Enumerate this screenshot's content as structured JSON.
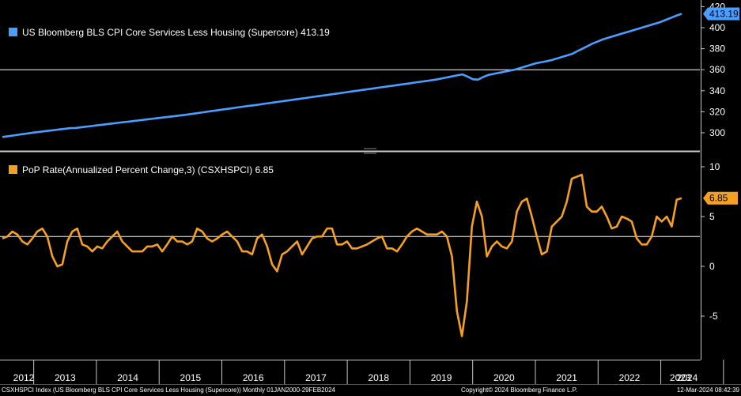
{
  "chart_data": [
    {
      "type": "line",
      "legend": "US Bloomberg BLS CPI Core Services Less Housing (Supercore) 413.19",
      "last_value_tag": "413.19",
      "color": "#4a9eff",
      "ylim": [
        290,
        420
      ],
      "yticks": [
        300,
        320,
        340,
        360,
        380,
        400,
        420
      ],
      "ytick_labels": [
        "300",
        "320",
        "340",
        "360",
        "380",
        "400",
        "420"
      ],
      "series": [
        {
          "values": [
            296.0,
            296.7,
            297.4,
            298.1,
            298.8,
            299.5,
            300.2,
            300.8,
            301.4,
            302.0,
            302.6,
            303.2,
            303.8,
            304.4,
            304.6,
            305.2,
            305.8,
            306.4,
            307.0,
            307.6,
            308.2,
            308.8,
            309.4,
            310.0,
            310.5,
            311.1,
            311.7,
            312.3,
            312.9,
            313.5,
            314.1,
            314.7,
            315.3,
            315.9,
            316.5,
            317.1,
            317.8,
            318.5,
            319.2,
            319.9,
            320.6,
            321.3,
            322.0,
            322.7,
            323.4,
            324.1,
            324.8,
            325.5,
            326.1,
            326.8,
            327.5,
            328.2,
            328.9,
            329.6,
            330.3,
            331.0,
            331.7,
            332.4,
            333.1,
            333.8,
            334.5,
            335.2,
            335.9,
            336.6,
            337.3,
            338.0,
            338.7,
            339.4,
            340.1,
            340.8,
            341.5,
            342.2,
            342.9,
            343.6,
            344.3,
            345.0,
            345.7,
            346.4,
            347.1,
            347.8,
            348.5,
            349.2,
            349.9,
            350.6,
            351.6,
            352.6,
            353.6,
            354.6,
            355.6,
            353.5,
            351.0,
            350.5,
            353.0,
            355.0,
            356.0,
            357.0,
            358.0,
            359.0,
            360.0,
            361.5,
            363.0,
            364.5,
            366.0,
            367.0,
            368.0,
            369.0,
            370.5,
            372.0,
            373.5,
            375.0,
            377.5,
            380.0,
            382.5,
            385.0,
            387.0,
            389.0,
            390.5,
            392.0,
            393.5,
            395.0,
            396.5,
            398.0,
            399.5,
            401.0,
            402.5,
            404.0,
            405.5,
            407.5,
            409.5,
            411.5,
            413.19
          ]
        }
      ]
    },
    {
      "type": "line",
      "legend": "PoP Rate(Annualized Percent Change,3) (CSXHSPCI) 6.85",
      "last_value_tag": "6.85",
      "color": "#f5a020",
      "ylim": [
        -8,
        10.5
      ],
      "yticks": [
        -5,
        0,
        5,
        10
      ],
      "ytick_labels": [
        "-5",
        "0",
        "5",
        "10"
      ],
      "series": [
        {
          "values": [
            2.8,
            3.0,
            3.5,
            3.2,
            2.5,
            2.2,
            2.8,
            3.5,
            3.8,
            3.0,
            1.0,
            0.0,
            0.2,
            2.5,
            3.5,
            3.8,
            2.2,
            2.0,
            1.5,
            2.0,
            1.8,
            2.5,
            3.0,
            3.5,
            2.5,
            2.0,
            1.5,
            1.5,
            1.5,
            2.0,
            2.0,
            2.2,
            1.5,
            2.2,
            3.0,
            2.5,
            2.5,
            2.2,
            2.5,
            3.8,
            3.5,
            2.8,
            2.5,
            2.8,
            3.2,
            3.5,
            3.0,
            2.5,
            1.5,
            1.5,
            1.2,
            2.8,
            3.2,
            2.0,
            0.2,
            -0.5,
            1.2,
            1.5,
            2.0,
            2.5,
            1.2,
            2.0,
            2.8,
            3.0,
            3.0,
            3.8,
            3.8,
            2.2,
            2.2,
            2.5,
            1.8,
            1.8,
            2.0,
            2.2,
            2.5,
            2.8,
            3.0,
            1.8,
            1.8,
            1.5,
            2.2,
            3.0,
            3.5,
            3.8,
            3.5,
            3.2,
            3.2,
            3.2,
            3.5,
            3.0,
            1.0,
            -4.5,
            -7.0,
            -3.5,
            4.0,
            6.5,
            5.0,
            1.0,
            2.0,
            2.5,
            2.0,
            1.8,
            2.5,
            5.5,
            6.5,
            6.8,
            5.0,
            3.0,
            1.2,
            1.5,
            4.0,
            4.5,
            5.0,
            6.5,
            8.8,
            9.0,
            9.2,
            6.0,
            5.5,
            5.5,
            6.0,
            5.0,
            3.8,
            4.0,
            5.0,
            4.8,
            4.5,
            2.8,
            2.2,
            2.2,
            3.0,
            5.0,
            4.5,
            5.0,
            4.0,
            6.7,
            6.85
          ]
        }
      ]
    }
  ],
  "x_axis": {
    "years": [
      "2012",
      "2013",
      "2014",
      "2015",
      "2016",
      "2017",
      "2018",
      "2019",
      "2020",
      "2021",
      "2022",
      "2023",
      "2024"
    ]
  },
  "footer": {
    "left": "CSXHSPCI Index (US Bloomberg BLS CPI Core Services Less Housing (Supercore)) Monthly 01JAN2000-29FEB2024",
    "center": "Copyright© 2024 Bloomberg Finance L.P.",
    "right": "12-Mar-2024 08:42:39"
  }
}
